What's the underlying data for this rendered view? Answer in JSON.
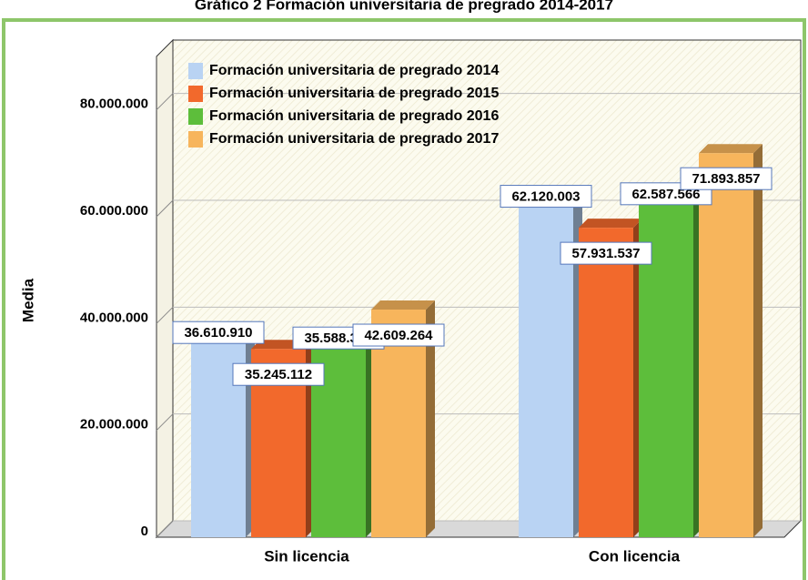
{
  "chart_data": {
    "type": "bar",
    "title": "Gráfico 2 Formación universitaria de pregrado 2014-2017",
    "ylabel": "Media",
    "categories": [
      "Sin licencia",
      "Con licencia"
    ],
    "series": [
      {
        "name": "Formación universitaria de pregrado 2014",
        "color": "#b9d3f3",
        "values": [
          36610910,
          62120003
        ],
        "value_labels": [
          "36.610.910",
          "62.120.003"
        ]
      },
      {
        "name": "Formación universitaria de pregrado 2015",
        "color": "#f2692c",
        "values": [
          35245112,
          57931537
        ],
        "value_labels": [
          "35.245.112",
          "57.931.537"
        ]
      },
      {
        "name": "Formación universitaria de pregrado 2016",
        "color": "#5dbe3b",
        "values": [
          35588366,
          62587566
        ],
        "value_labels": [
          "35.588.366",
          "62.587.566"
        ]
      },
      {
        "name": "Formación universitaria de pregrado 2017",
        "color": "#f7b55c",
        "values": [
          42609264,
          71893857
        ],
        "value_labels": [
          "42.609.264",
          "71.893.857"
        ]
      }
    ],
    "ylim": [
      0,
      90000000
    ],
    "yticks": [
      0,
      {
        "value": 20000000,
        "label": "20.000.000"
      },
      {
        "value": 40000000,
        "label": "40.000.000"
      },
      {
        "value": 60000000,
        "label": "60.000.000"
      },
      {
        "value": 80000000,
        "label": "80.000.000"
      }
    ],
    "grid": true,
    "legend": "top-left"
  }
}
